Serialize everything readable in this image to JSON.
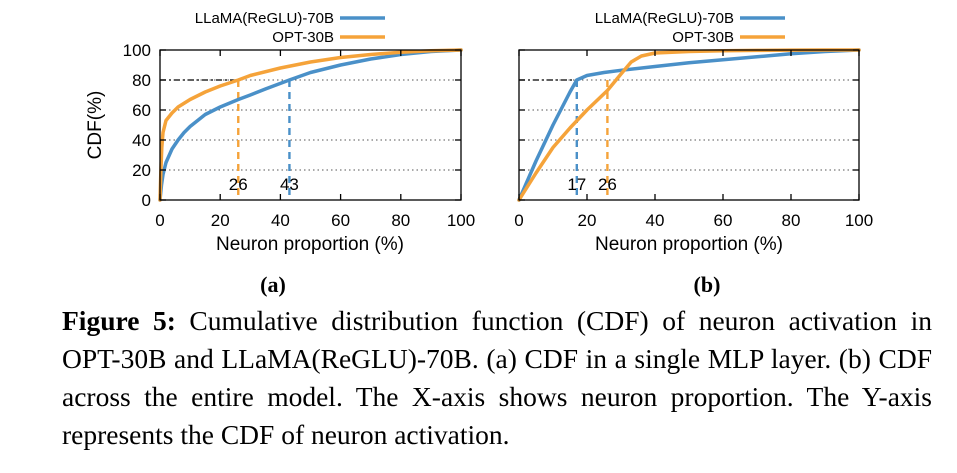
{
  "chart_data": [
    {
      "type": "line",
      "panel_label": "(a)",
      "xlabel": "Neuron proportion (%)",
      "ylabel": "CDF(%)",
      "xlim": [
        0,
        100
      ],
      "ylim": [
        0,
        100
      ],
      "xticks": [
        "0",
        "20",
        "40",
        "60",
        "80",
        "100"
      ],
      "yticks": [
        "0",
        "20",
        "40",
        "60",
        "80",
        "100"
      ],
      "grid": "dotted horizontal",
      "legend_position": "top",
      "reference_line_y": 80,
      "series": [
        {
          "name": "LLaMA(ReGLU)-70B",
          "color": "#4a90c8",
          "x": [
            0,
            0.5,
            1,
            2,
            4,
            6,
            8,
            10,
            15,
            20,
            26,
            30,
            35,
            43,
            50,
            60,
            70,
            80,
            90,
            100
          ],
          "y": [
            0,
            10,
            17,
            25,
            34,
            40,
            45,
            49,
            57,
            62,
            67,
            70,
            74,
            80,
            85,
            90,
            94,
            97,
            99,
            100
          ]
        },
        {
          "name": "OPT-30B",
          "color": "#f5a33a",
          "x": [
            0,
            0.3,
            0.6,
            1,
            2,
            4,
            6,
            10,
            15,
            20,
            26,
            30,
            40,
            50,
            60,
            70,
            80,
            90,
            100
          ],
          "y": [
            0,
            20,
            35,
            45,
            53,
            58,
            62,
            67,
            72,
            76,
            80,
            83,
            88,
            92,
            95,
            97,
            98.5,
            99.5,
            100
          ]
        }
      ],
      "annotations": [
        {
          "x": 26,
          "label": "26",
          "color": "#f5a33a"
        },
        {
          "x": 43,
          "label": "43",
          "color": "#4a90c8"
        }
      ]
    },
    {
      "type": "line",
      "panel_label": "(b)",
      "xlabel": "Neuron proportion (%)",
      "ylabel": "",
      "xlim": [
        0,
        100
      ],
      "ylim": [
        0,
        100
      ],
      "xticks": [
        "0",
        "20",
        "40",
        "60",
        "80",
        "100"
      ],
      "yticks": [
        "0",
        "20",
        "40",
        "60",
        "80",
        "100"
      ],
      "grid": "dotted horizontal",
      "legend_position": "top",
      "reference_line_y": 80,
      "series": [
        {
          "name": "LLaMA(ReGLU)-70B",
          "color": "#4a90c8",
          "x": [
            0,
            5,
            10,
            15,
            17,
            20,
            25,
            30,
            40,
            50,
            60,
            70,
            80,
            90,
            100
          ],
          "y": [
            0,
            26,
            50,
            72,
            80,
            83,
            85,
            86.5,
            89,
            91.5,
            93.5,
            95.5,
            97.5,
            99,
            100
          ]
        },
        {
          "name": "OPT-30B",
          "color": "#f5a33a",
          "x": [
            0,
            5,
            10,
            15,
            20,
            26,
            30,
            33,
            36,
            40,
            50,
            60,
            70,
            80,
            90,
            100
          ],
          "y": [
            0,
            18,
            35,
            48,
            60,
            73,
            84,
            92,
            96,
            98,
            99,
            99.5,
            99.7,
            99.9,
            100,
            100
          ]
        }
      ],
      "annotations": [
        {
          "x": 17,
          "label": "17",
          "color": "#4a90c8"
        },
        {
          "x": 26,
          "label": "26",
          "color": "#f5a33a"
        }
      ]
    }
  ],
  "caption": {
    "label": "Figure 5:",
    "text": " Cumulative distribution function (CDF) of neuron activation in OPT-30B and LLaMA(ReGLU)-70B. (a) CDF in a single MLP layer. (b) CDF across the entire model. The X-axis shows neuron proportion. The Y-axis represents the CDF of neuron activation."
  }
}
